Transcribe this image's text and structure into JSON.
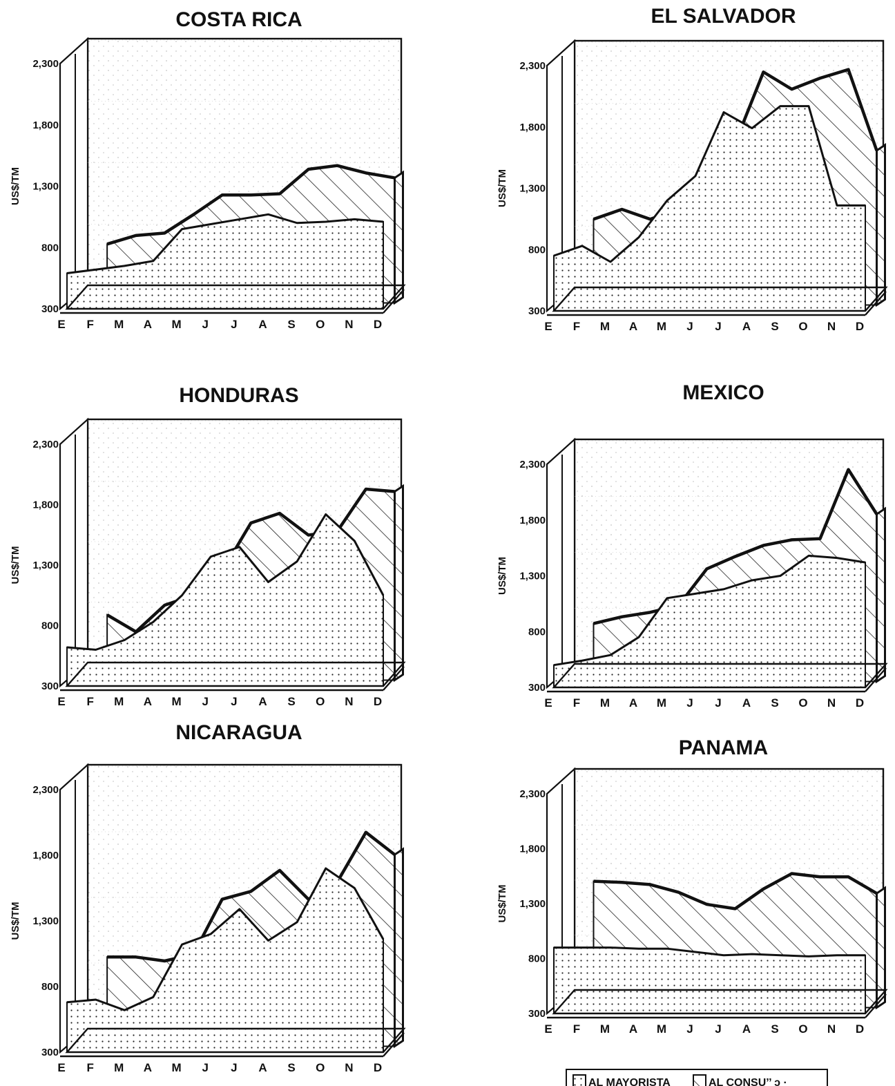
{
  "legend": {
    "items": [
      {
        "label": "AL MAYORISTA",
        "pattern": "dots"
      },
      {
        "label": "AL CONSU’’ ɔ ·",
        "pattern": "hatch"
      }
    ]
  },
  "chart_data": [
    {
      "type": "area",
      "title": "COSTA RICA",
      "ylabel": "US$/TM",
      "ylim": [
        300,
        2300
      ],
      "yticks": [
        "300",
        "800",
        "1,300",
        "1,800",
        "2,300"
      ],
      "categories": [
        "E",
        "F",
        "M",
        "A",
        "M",
        "J",
        "J",
        "A",
        "S",
        "O",
        "N",
        "D"
      ],
      "series": [
        {
          "name": "AL MAYORISTA",
          "values": [
            590,
            620,
            650,
            690,
            950,
            990,
            1030,
            1070,
            1000,
            1010,
            1030,
            1010
          ]
        },
        {
          "name": "AL CONSUMIDOR",
          "values": [
            null,
            780,
            850,
            870,
            1020,
            1180,
            1180,
            1190,
            1390,
            1420,
            1360,
            1320
          ]
        }
      ]
    },
    {
      "type": "area",
      "title": "EL SALVADOR",
      "ylabel": "US$/TM",
      "ylim": [
        300,
        2300
      ],
      "yticks": [
        "300",
        "800",
        "1,300",
        "1,800",
        "2,300"
      ],
      "categories": [
        "E",
        "F",
        "M",
        "A",
        "M",
        "J",
        "J",
        "A",
        "S",
        "O",
        "N",
        "D"
      ],
      "series": [
        {
          "name": "AL MAYORISTA",
          "values": [
            750,
            830,
            700,
            900,
            1200,
            1400,
            1920,
            1790,
            1970,
            1970,
            1160,
            1160
          ]
        },
        {
          "name": "AL CONSUMIDOR",
          "values": [
            null,
            1000,
            1080,
            1000,
            1080,
            1460,
            1620,
            2200,
            2060,
            2150,
            2220,
            1560
          ]
        }
      ]
    },
    {
      "type": "area",
      "title": "HONDURAS",
      "ylabel": "US$/TM",
      "ylim": [
        300,
        2300
      ],
      "yticks": [
        "300",
        "800",
        "1,300",
        "1,800",
        "2,300"
      ],
      "categories": [
        "E",
        "F",
        "M",
        "A",
        "M",
        "J",
        "J",
        "A",
        "S",
        "O",
        "N",
        "D"
      ],
      "series": [
        {
          "name": "AL MAYORISTA",
          "values": [
            620,
            600,
            680,
            830,
            1050,
            1370,
            1450,
            1160,
            1330,
            1720,
            1500,
            1050
          ]
        },
        {
          "name": "AL CONSUMIDOR",
          "values": [
            null,
            840,
            700,
            920,
            1000,
            1200,
            1600,
            1680,
            1500,
            1530,
            1880,
            1860
          ]
        }
      ]
    },
    {
      "type": "area",
      "title": "MEXICO",
      "ylabel": "US$/TM",
      "ylim": [
        300,
        2300
      ],
      "yticks": [
        "300",
        "800",
        "1,300",
        "1,800",
        "2,300"
      ],
      "categories": [
        "E",
        "F",
        "M",
        "A",
        "M",
        "J",
        "J",
        "A",
        "S",
        "O",
        "N",
        "D"
      ],
      "series": [
        {
          "name": "AL MAYORISTA",
          "values": [
            500,
            540,
            590,
            750,
            1100,
            1140,
            1180,
            1260,
            1300,
            1480,
            1460,
            1420
          ]
        },
        {
          "name": "AL CONSUMIDOR",
          "values": [
            null,
            820,
            880,
            920,
            980,
            1310,
            1420,
            1520,
            1570,
            1580,
            2200,
            1800
          ]
        }
      ]
    },
    {
      "type": "area",
      "title": "NICARAGUA",
      "ylabel": "US$/TM",
      "ylim": [
        300,
        2300
      ],
      "yticks": [
        "300",
        "800",
        "1,300",
        "1,800",
        "2,300"
      ],
      "categories": [
        "E",
        "F",
        "M",
        "A",
        "M",
        "J",
        "J",
        "A",
        "S",
        "O",
        "N",
        "D"
      ],
      "series": [
        {
          "name": "AL MAYORISTA",
          "values": [
            680,
            700,
            620,
            720,
            1120,
            1200,
            1390,
            1150,
            1290,
            1700,
            1550,
            1160
          ]
        },
        {
          "name": "AL CONSUMIDOR",
          "values": [
            null,
            980,
            980,
            950,
            1000,
            1420,
            1480,
            1640,
            1420,
            1550,
            1930,
            1760
          ]
        }
      ]
    },
    {
      "type": "area",
      "title": "PANAMA",
      "ylabel": "US$/TM",
      "ylim": [
        300,
        2300
      ],
      "yticks": [
        "300",
        "800",
        "1,300",
        "1,800",
        "2,300"
      ],
      "categories": [
        "E",
        "F",
        "M",
        "A",
        "M",
        "J",
        "J",
        "A",
        "S",
        "O",
        "N",
        "D"
      ],
      "series": [
        {
          "name": "AL MAYORISTA",
          "values": [
            900,
            900,
            900,
            890,
            890,
            860,
            830,
            840,
            830,
            820,
            830,
            830
          ]
        },
        {
          "name": "AL CONSUMIDOR",
          "values": [
            null,
            1450,
            1440,
            1420,
            1350,
            1240,
            1200,
            1380,
            1520,
            1490,
            1490,
            1340
          ]
        }
      ]
    }
  ]
}
